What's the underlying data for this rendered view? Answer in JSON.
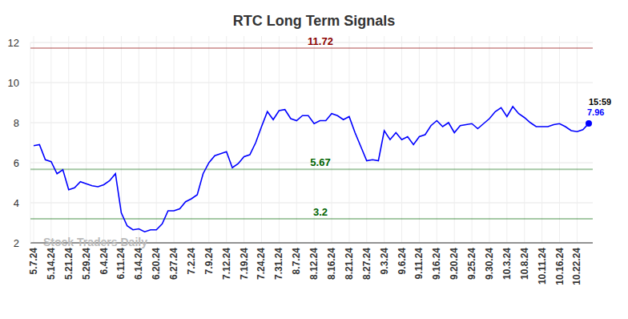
{
  "chart_data": {
    "type": "line",
    "title": "RTC Long Term Signals",
    "categories": [
      "5.7.24",
      null,
      null,
      "5.14.24",
      null,
      null,
      "5.21.24",
      null,
      null,
      "5.29.24",
      null,
      null,
      "6.4.24",
      null,
      null,
      "6.11.24",
      null,
      null,
      "6.14.24",
      null,
      null,
      "6.20.24",
      null,
      null,
      "6.27.24",
      null,
      null,
      "7.2.24",
      null,
      null,
      "7.9.24",
      null,
      null,
      "7.12.24",
      null,
      null,
      "7.19.24",
      null,
      null,
      "7.24.24",
      null,
      null,
      "7.31.24",
      null,
      null,
      "8.7.24",
      null,
      null,
      "8.12.24",
      null,
      null,
      "8.16.24",
      null,
      null,
      "8.21.24",
      null,
      null,
      "8.27.24",
      null,
      null,
      "9.3.24",
      null,
      null,
      "9.6.24",
      null,
      null,
      "9.11.24",
      null,
      null,
      "9.16.24",
      null,
      null,
      "9.20.24",
      null,
      null,
      "9.25.24",
      null,
      null,
      "9.30.24",
      null,
      null,
      "10.3.24",
      null,
      null,
      "10.8.24",
      null,
      null,
      "10.11.24",
      null,
      null,
      "10.16.24",
      null,
      null,
      "10.22.24",
      null,
      null
    ],
    "series": [
      {
        "color": "#0000ff",
        "values": [
          6.85,
          6.9,
          6.15,
          6.05,
          5.45,
          5.65,
          4.65,
          4.75,
          5.05,
          4.95,
          4.85,
          4.8,
          4.9,
          5.1,
          5.45,
          3.5,
          2.85,
          2.65,
          2.7,
          2.55,
          2.65,
          2.65,
          2.95,
          3.6,
          3.6,
          3.7,
          4.05,
          4.2,
          4.4,
          5.45,
          6.0,
          6.35,
          6.45,
          6.55,
          5.75,
          5.95,
          6.3,
          6.4,
          7.0,
          7.8,
          8.55,
          8.15,
          8.6,
          8.65,
          8.2,
          8.1,
          8.35,
          8.35,
          7.95,
          8.1,
          8.1,
          8.45,
          8.35,
          8.15,
          8.3,
          7.5,
          6.8,
          6.1,
          6.15,
          6.1,
          7.6,
          7.15,
          7.5,
          7.15,
          7.3,
          6.9,
          7.3,
          7.4,
          7.85,
          8.1,
          7.8,
          8.0,
          7.5,
          7.85,
          7.9,
          7.95,
          7.7,
          7.95,
          8.2,
          8.55,
          8.75,
          8.3,
          8.8,
          8.45,
          8.25,
          8.0,
          7.8,
          7.8,
          7.8,
          7.9,
          7.95,
          7.8,
          7.6,
          7.55,
          7.65,
          7.96
        ]
      }
    ],
    "ylim": [
      2,
      12
    ],
    "yticks": [
      2,
      4,
      6,
      8,
      10,
      12
    ],
    "grid": true,
    "reference_lines": [
      {
        "value": 11.72,
        "color": "#8b0000"
      },
      {
        "value": 5.67,
        "color": "#006400"
      },
      {
        "value": 3.2,
        "color": "#006400"
      }
    ],
    "annotation": {
      "time": "15:59",
      "value": 7.96
    },
    "watermark": "Stock Traders Daily"
  }
}
